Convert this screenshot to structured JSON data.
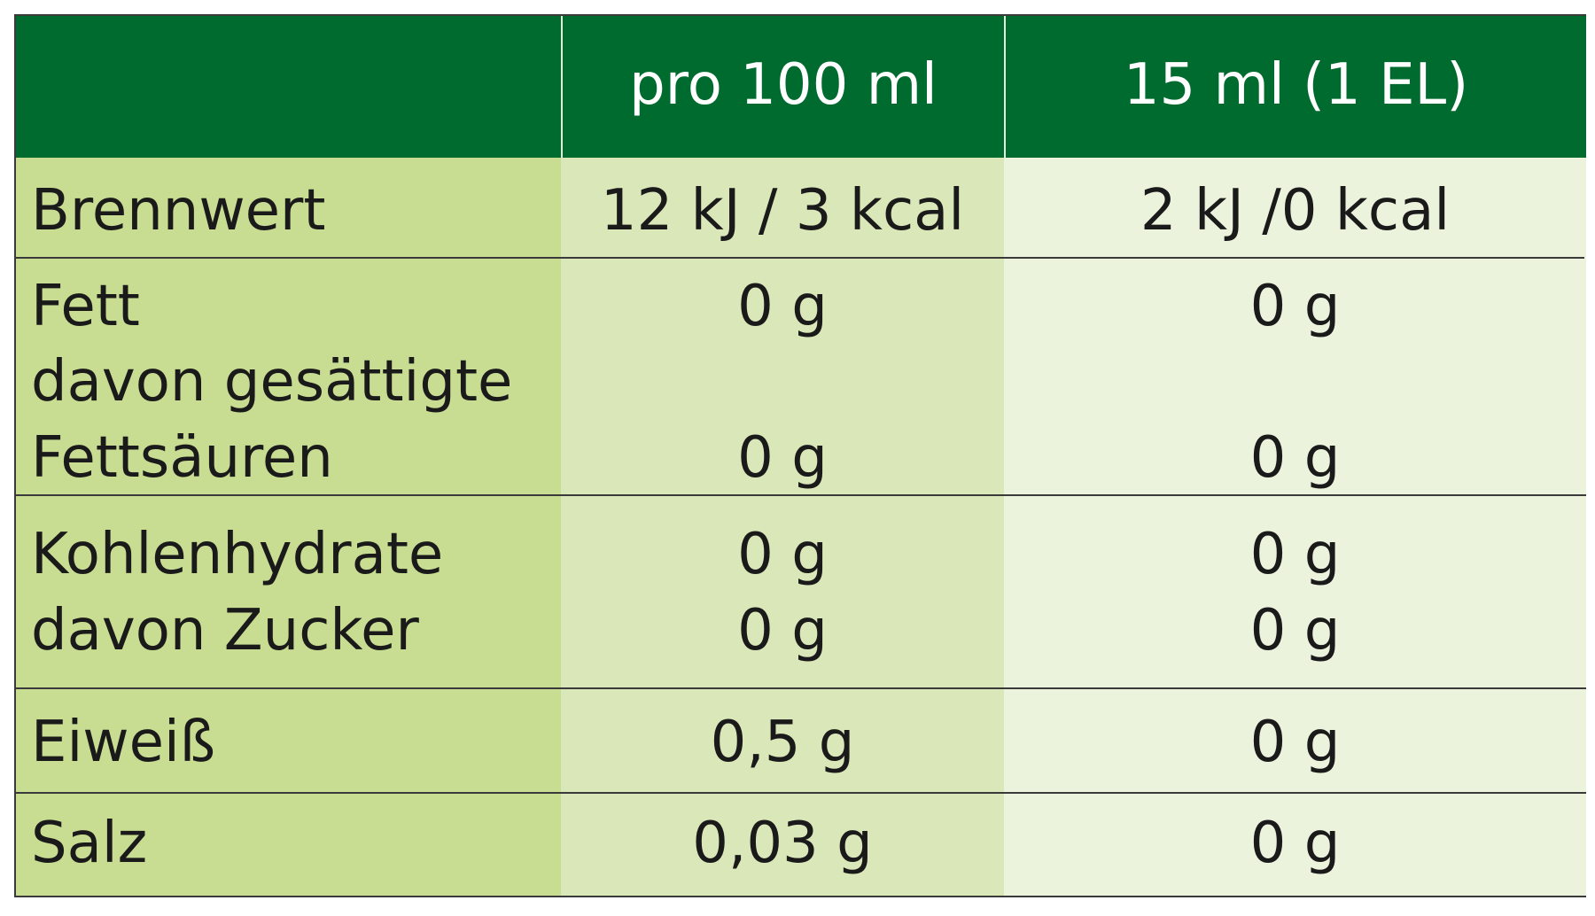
{
  "header": {
    "col_label": "",
    "col_per100": "pro 100 ml",
    "col_per15": "15 ml (1 EL)"
  },
  "rows": {
    "brennwert": {
      "label": "Brennwert",
      "per100": "12 kJ / 3 kcal",
      "per15": "2 kJ /0 kcal"
    },
    "fett": {
      "label": "Fett",
      "sub_label_line1": "davon gesättigte",
      "sub_label_line2": "Fettsäuren",
      "per100": "0 g",
      "per15": "0 g",
      "sub_per100": "0 g",
      "sub_per15": "0 g"
    },
    "kohlenhydrate": {
      "label": "Kohlenhydrate",
      "sub_label": "davon Zucker",
      "per100": "0 g",
      "per15": "0 g",
      "sub_per100": "0 g",
      "sub_per15": "0 g"
    },
    "eiweiss": {
      "label": "Eiweiß",
      "per100": "0,5 g",
      "per15": "0 g"
    },
    "salz": {
      "label": "Salz",
      "per100": "0,03 g",
      "per15": "0 g"
    }
  },
  "colors": {
    "header_bg": "#006b2e",
    "label_col_bg": "#c8dc92",
    "per100_col_bg": "#dae7b8",
    "per15_col_bg": "#ecf3dc",
    "border": "#3a3a3a"
  }
}
